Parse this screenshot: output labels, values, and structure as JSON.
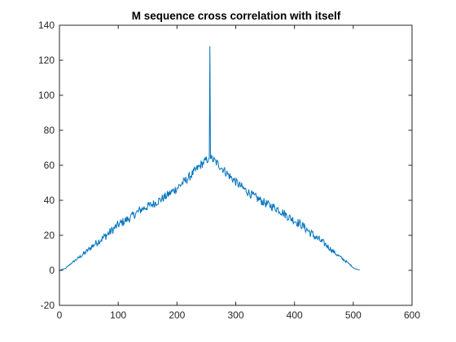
{
  "chart_data": {
    "type": "line",
    "title": "M sequence cross correlation with itself",
    "xlabel": "",
    "ylabel": "",
    "xlim": [
      0,
      600
    ],
    "ylim": [
      -20,
      140
    ],
    "x_ticks": [
      0,
      100,
      200,
      300,
      400,
      500,
      600
    ],
    "y_ticks": [
      -20,
      0,
      20,
      40,
      60,
      80,
      100,
      120,
      140
    ],
    "x_tick_labels": [
      "0",
      "100",
      "200",
      "300",
      "400",
      "500",
      "600"
    ],
    "y_tick_labels": [
      "-20",
      "0",
      "20",
      "40",
      "60",
      "80",
      "100",
      "120",
      "140"
    ],
    "grid": false,
    "box": true,
    "series": [
      {
        "color": "#0072BD",
        "n_points": 511,
        "envelope": [
          [
            1,
            0.2
          ],
          [
            10,
            1
          ],
          [
            20,
            4
          ],
          [
            40,
            9
          ],
          [
            60,
            15
          ],
          [
            80,
            20
          ],
          [
            100,
            26
          ],
          [
            120,
            30
          ],
          [
            140,
            35
          ],
          [
            160,
            38
          ],
          [
            180,
            42
          ],
          [
            200,
            47
          ],
          [
            220,
            53
          ],
          [
            240,
            60
          ],
          [
            250,
            63
          ],
          [
            255,
            64
          ],
          [
            256,
            128
          ],
          [
            257,
            64
          ],
          [
            262,
            63
          ],
          [
            272,
            60
          ],
          [
            292,
            53
          ],
          [
            312,
            47
          ],
          [
            332,
            42
          ],
          [
            352,
            38
          ],
          [
            372,
            35
          ],
          [
            392,
            30
          ],
          [
            412,
            26
          ],
          [
            432,
            20
          ],
          [
            452,
            15
          ],
          [
            472,
            9
          ],
          [
            492,
            4
          ],
          [
            502,
            1
          ],
          [
            511,
            0.2
          ]
        ],
        "noise_amplitude": 2.5
      }
    ]
  }
}
